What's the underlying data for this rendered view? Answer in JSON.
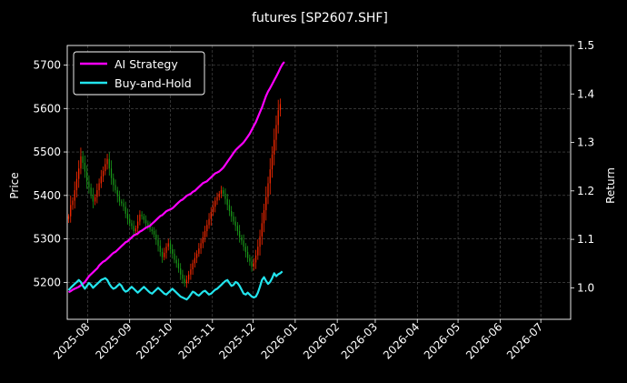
{
  "chart_data": {
    "type": "line",
    "title": "futures [SP2607.SHF]",
    "ylabel": "Price",
    "y2label": "Return",
    "xlim": [
      "2025-07-17",
      "2026-07-23"
    ],
    "ylim": [
      5115,
      5745
    ],
    "y2lim": [
      0.935,
      1.5
    ],
    "x_ticks": [
      "2025-08",
      "2025-09",
      "2025-10",
      "2025-11",
      "2025-12",
      "2026-01",
      "2026-02",
      "2026-03",
      "2026-04",
      "2026-05",
      "2026-06",
      "2026-07"
    ],
    "y_ticks": [
      5200,
      5300,
      5400,
      5500,
      5600,
      5700
    ],
    "y2_ticks": [
      "1.0",
      "1.1",
      "1.2",
      "1.3",
      "1.4",
      "1.5"
    ],
    "grid": true,
    "legend_position": "top-left",
    "colors": {
      "up": "#ff2a00",
      "down": "#1a9a1a",
      "strategy": "#ff00ff",
      "hold": "#22e5ee",
      "background": "#000000"
    },
    "candles": {
      "start": "2025-07-18",
      "close": [
        5352,
        5378,
        5388,
        5412,
        5438,
        5462,
        5490,
        5475,
        5455,
        5432,
        5418,
        5402,
        5386,
        5396,
        5412,
        5428,
        5444,
        5456,
        5472,
        5484,
        5462,
        5440,
        5424,
        5412,
        5398,
        5386,
        5382,
        5374,
        5358,
        5346,
        5336,
        5330,
        5318,
        5324,
        5340,
        5356,
        5352,
        5344,
        5336,
        5330,
        5322,
        5318,
        5310,
        5298,
        5284,
        5270,
        5258,
        5268,
        5282,
        5290,
        5276,
        5266,
        5252,
        5244,
        5232,
        5218,
        5208,
        5198,
        5206,
        5218,
        5230,
        5244,
        5256,
        5266,
        5278,
        5290,
        5304,
        5318,
        5332,
        5346,
        5362,
        5374,
        5388,
        5396,
        5404,
        5412,
        5404,
        5392,
        5378,
        5364,
        5352,
        5340,
        5330,
        5318,
        5304,
        5296,
        5282,
        5270,
        5256,
        5248,
        5236,
        5246,
        5262,
        5282,
        5306,
        5336,
        5366,
        5396,
        5428,
        5460,
        5494,
        5528,
        5562,
        5596,
        5610
      ]
    },
    "series": [
      {
        "name": "AI Strategy",
        "start": "2025-07-18",
        "values": [
          0.991,
          0.993,
          0.996,
          0.998,
          1.0,
          1.002,
          1.005,
          1.008,
          1.012,
          1.018,
          1.024,
          1.028,
          1.032,
          1.036,
          1.04,
          1.046,
          1.05,
          1.054,
          1.056,
          1.06,
          1.064,
          1.068,
          1.072,
          1.074,
          1.078,
          1.082,
          1.086,
          1.09,
          1.094,
          1.096,
          1.1,
          1.104,
          1.108,
          1.11,
          1.112,
          1.116,
          1.118,
          1.121,
          1.124,
          1.126,
          1.128,
          1.132,
          1.136,
          1.14,
          1.144,
          1.148,
          1.15,
          1.154,
          1.158,
          1.16,
          1.162,
          1.164,
          1.168,
          1.172,
          1.176,
          1.18,
          1.182,
          1.186,
          1.19,
          1.192,
          1.194,
          1.198,
          1.2,
          1.204,
          1.208,
          1.212,
          1.216,
          1.218,
          1.22,
          1.224,
          1.228,
          1.232,
          1.236,
          1.238,
          1.24,
          1.244,
          1.248,
          1.254,
          1.26,
          1.266,
          1.272,
          1.278,
          1.284,
          1.288,
          1.292,
          1.296,
          1.3,
          1.306,
          1.312,
          1.318,
          1.326,
          1.334,
          1.342,
          1.352,
          1.362,
          1.372,
          1.384,
          1.396,
          1.405,
          1.412,
          1.42,
          1.428,
          1.436,
          1.444,
          1.453,
          1.461,
          1.466
        ]
      },
      {
        "name": "Buy-and-Hold",
        "start": "2025-07-18",
        "values": [
          0.995,
          1.0,
          1.004,
          1.008,
          1.012,
          1.016,
          1.012,
          1.004,
          0.998,
          1.004,
          1.01,
          1.006,
          1.0,
          1.004,
          1.008,
          1.012,
          1.016,
          1.018,
          1.02,
          1.016,
          1.008,
          1.002,
          0.998,
          1.0,
          1.004,
          1.008,
          1.004,
          0.996,
          0.992,
          0.994,
          0.998,
          1.002,
          0.998,
          0.994,
          0.99,
          0.994,
          0.998,
          1.002,
          0.998,
          0.994,
          0.99,
          0.988,
          0.992,
          0.996,
          1.0,
          0.996,
          0.992,
          0.988,
          0.986,
          0.99,
          0.994,
          0.998,
          0.994,
          0.99,
          0.986,
          0.982,
          0.98,
          0.978,
          0.976,
          0.98,
          0.986,
          0.992,
          0.99,
          0.986,
          0.984,
          0.988,
          0.992,
          0.994,
          0.99,
          0.986,
          0.988,
          0.992,
          0.996,
          0.998,
          1.002,
          1.006,
          1.01,
          1.014,
          1.016,
          1.01,
          1.004,
          1.006,
          1.012,
          1.01,
          1.004,
          0.996,
          0.988,
          0.986,
          0.99,
          0.986,
          0.982,
          0.98,
          0.982,
          0.99,
          1.002,
          1.016,
          1.022,
          1.014,
          1.008,
          1.012,
          1.02,
          1.03,
          1.024,
          1.028,
          1.03,
          1.034
        ]
      }
    ]
  }
}
